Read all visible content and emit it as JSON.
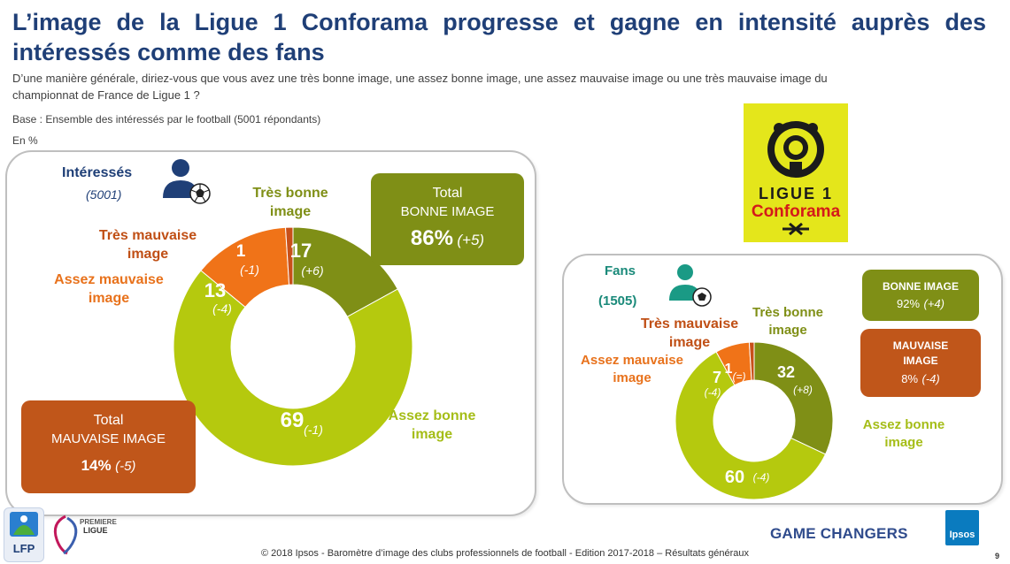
{
  "header": {
    "title_line1": "L’image de la Ligue 1 Conforama progresse et gagne en intensité auprès des",
    "title_line2": "intéressés comme des fans",
    "question": "D’une manière générale, diriez-vous que vous avez une très bonne image, une assez bonne image, une assez mauvaise image ou une très mauvaise image du championnat de France de Ligue 1 ?",
    "base": "Base : Ensemble des intéressés par le football  (5001 répondants)",
    "unit": "En %"
  },
  "colors": {
    "tres_bonne": "#7f8f16",
    "assez_bonne": "#b5c90e",
    "assez_mauvaise": "#f07318",
    "tres_mauvaise": "#c8501a",
    "box_bonne": "#7f8f16",
    "box_mauvaise": "#c0561a"
  },
  "chart_data": [
    {
      "type": "pie",
      "variant": "donut",
      "group": "Intéressés",
      "n": "(5001)",
      "categories": [
        "Très bonne image",
        "Assez bonne image",
        "Assez mauvaise image",
        "Très mauvaise image"
      ],
      "values": [
        17,
        69,
        13,
        1
      ],
      "value_labels": [
        "17",
        "69",
        "13",
        "1"
      ],
      "deltas": [
        "(+6)",
        "(-1)",
        "(-4)",
        "(-1)"
      ],
      "totals": {
        "bonne_title": "Total",
        "bonne_label": "BONNE IMAGE",
        "bonne_value": "86%",
        "bonne_delta": "(+5)",
        "mauvaise_title": "Total",
        "mauvaise_label": "MAUVAISE IMAGE",
        "mauvaise_value": "14%",
        "mauvaise_delta": "(-5)"
      }
    },
    {
      "type": "pie",
      "variant": "donut",
      "group": "Fans",
      "n": "(1505)",
      "categories": [
        "Très bonne image",
        "Assez bonne image",
        "Assez mauvaise image",
        "Très mauvaise image"
      ],
      "values": [
        32,
        60,
        7,
        1
      ],
      "value_labels": [
        "32",
        "60",
        "7",
        "1"
      ],
      "deltas": [
        "(+8)",
        "(-4)",
        "(-4)",
        "(=)"
      ],
      "totals": {
        "bonne_label": "BONNE IMAGE",
        "bonne_value": "92%",
        "bonne_delta": "(+4)",
        "mauvaise_label_1": "MAUVAISE",
        "mauvaise_label_2": "IMAGE",
        "mauvaise_value": "8%",
        "mauvaise_delta": "(-4)"
      }
    }
  ],
  "labels": {
    "tres_bonne_1": "Très bonne",
    "tres_bonne_2": "image",
    "assez_bonne_1": "Assez bonne",
    "assez_bonne_2": "image",
    "assez_mauvaise_1": "Assez mauvaise",
    "assez_mauvaise_2": "image",
    "tres_mauvaise_1": "Très mauvaise",
    "tres_mauvaise_2": "image"
  },
  "logo": {
    "line1": "LIGUE 1",
    "line2": "Conforama"
  },
  "footer": {
    "copyright": "© 2018 Ipsos - Baromètre d’image des clubs professionnels de football  - Edition 2017-2018 – Résultats généraux",
    "page": "9",
    "game_changers": "GAME CHANGERS",
    "ipsos": "Ipsos",
    "lfp": "LFP",
    "premiere_1": "PREMIERE",
    "premiere_2": "LIGUE"
  }
}
